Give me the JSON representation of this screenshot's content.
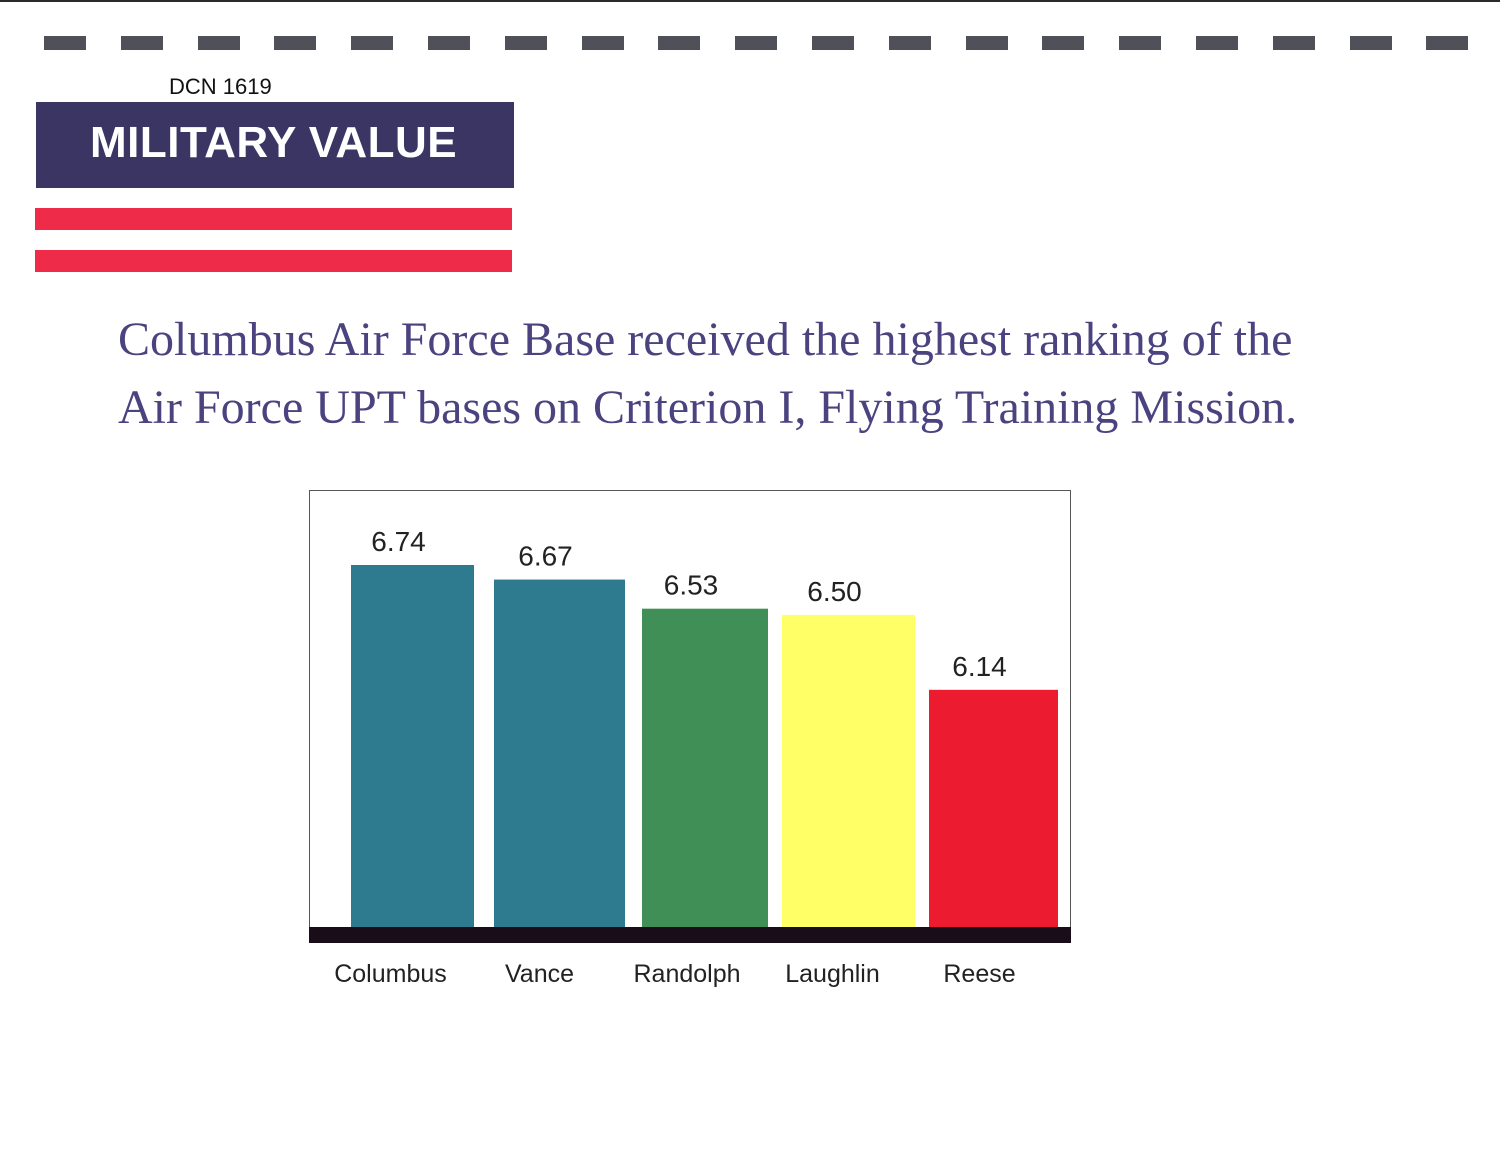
{
  "document": {
    "dcn": "DCN 1619",
    "banner_title": "MILITARY VALUE",
    "headline_line1": "Columbus Air Force Base received the highest ranking of the",
    "headline_line2": "Air Force UPT bases on Criterion I, Flying Training Mission."
  },
  "colors": {
    "banner": "#3b3563",
    "stripes": "#ee2b48",
    "headline_text": "#4a4380"
  },
  "chart_data": {
    "type": "bar",
    "title": "",
    "xlabel": "",
    "ylabel": "",
    "categories": [
      "Columbus",
      "Vance",
      "Randolph",
      "Laughlin",
      "Reese"
    ],
    "values": [
      6.74,
      6.67,
      6.53,
      6.5,
      6.14
    ],
    "value_labels": [
      "6.74",
      "6.67",
      "6.53",
      "6.50",
      "6.14"
    ],
    "bar_colors": [
      "#2e7b8f",
      "#2e7b8f",
      "#3f8f57",
      "#ffff66",
      "#ec1b30"
    ],
    "baseline_color": "#1a0d1a",
    "ylim": [
      5.0,
      7.0
    ],
    "grid": false,
    "legend": "none"
  }
}
